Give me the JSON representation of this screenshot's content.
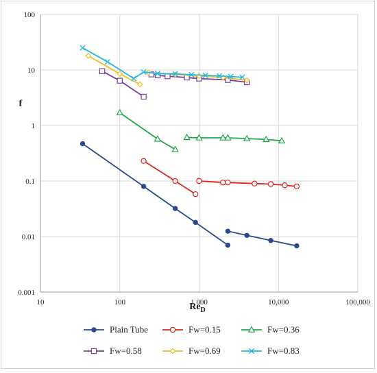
{
  "chart_data": {
    "type": "line",
    "title": "",
    "xlabel": "Re",
    "xlabel_subscript": "D",
    "ylabel": "f",
    "xscale": "log",
    "yscale": "log",
    "xlim": [
      10,
      100000
    ],
    "ylim": [
      0.001,
      100
    ],
    "grid": "major gridlines on both axes",
    "legend_position": "bottom",
    "x_tick_labels": [
      "10",
      "100",
      "1 000",
      "10,000",
      "100,000"
    ],
    "y_tick_labels": [
      "0.001",
      "0.01",
      "0.1",
      "1",
      "10",
      "100"
    ],
    "series": [
      {
        "name": "Plain Tube",
        "color": "#2b4a8a",
        "marker": "filled-circle",
        "segments": [
          [
            [
              34,
              0.47
            ],
            [
              200,
              0.08
            ],
            [
              500,
              0.032
            ],
            [
              900,
              0.018
            ],
            [
              2300,
              0.007
            ]
          ],
          [
            [
              2300,
              0.0125
            ],
            [
              4000,
              0.0105
            ],
            [
              8000,
              0.0085
            ],
            [
              17000,
              0.0068
            ]
          ]
        ]
      },
      {
        "name": "Fw=0.15",
        "color": "#e0231e",
        "marker": "open-circle",
        "segments": [
          [
            [
              200,
              0.23
            ],
            [
              500,
              0.1
            ],
            [
              900,
              0.058
            ]
          ],
          [
            [
              1000,
              0.1
            ],
            [
              2000,
              0.094
            ],
            [
              2300,
              0.094
            ],
            [
              5000,
              0.09
            ],
            [
              8000,
              0.088
            ],
            [
              12000,
              0.084
            ],
            [
              17000,
              0.08
            ]
          ]
        ]
      },
      {
        "name": "Fw=0.36",
        "color": "#1fa84a",
        "marker": "open-triangle",
        "segments": [
          [
            [
              100,
              1.7
            ],
            [
              300,
              0.57
            ],
            [
              500,
              0.37
            ]
          ],
          [
            [
              700,
              0.61
            ],
            [
              1000,
              0.6
            ],
            [
              2000,
              0.6
            ],
            [
              2300,
              0.6
            ],
            [
              4000,
              0.58
            ],
            [
              7000,
              0.56
            ],
            [
              11000,
              0.53
            ]
          ]
        ]
      },
      {
        "name": "Fw=0.58",
        "color": "#7b3fa0",
        "marker": "open-square",
        "segments": [
          [
            [
              60,
              9.5
            ],
            [
              100,
              6.4
            ],
            [
              200,
              3.3
            ]
          ],
          [
            [
              250,
              8.3
            ],
            [
              300,
              8.0
            ],
            [
              400,
              7.7
            ],
            [
              700,
              7.3
            ],
            [
              1000,
              7.0
            ],
            [
              2300,
              6.6
            ],
            [
              4000,
              6.0
            ]
          ]
        ]
      },
      {
        "name": "Fw=0.69",
        "color": "#f0c020",
        "marker": "open-diamond",
        "segments": [
          [
            [
              40,
              18
            ],
            [
              100,
              8.5
            ],
            [
              180,
              5.5
            ]
          ],
          [
            [
              230,
              9.0
            ],
            [
              500,
              8.3
            ],
            [
              1000,
              7.8
            ],
            [
              2000,
              7.3
            ],
            [
              4000,
              6.5
            ]
          ]
        ]
      },
      {
        "name": "Fw=0.83",
        "color": "#22b8e0",
        "marker": "x",
        "segments": [
          [
            [
              34,
              25
            ],
            [
              70,
              14
            ],
            [
              150,
              7
            ],
            [
              200,
              9.2
            ],
            [
              300,
              8.6
            ],
            [
              500,
              8.5
            ],
            [
              800,
              8.2
            ],
            [
              1200,
              8.0
            ],
            [
              1800,
              7.8
            ],
            [
              2500,
              7.6
            ],
            [
              3500,
              7.4
            ]
          ]
        ]
      }
    ]
  }
}
